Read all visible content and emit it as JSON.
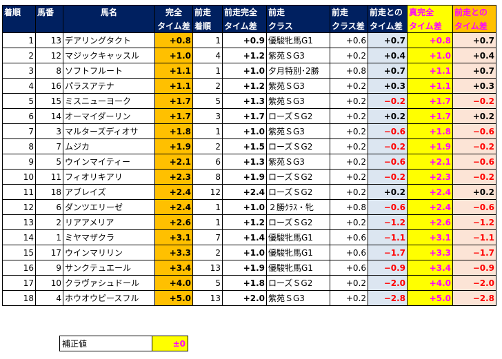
{
  "headers": {
    "rank": [
      "着順",
      ""
    ],
    "number": [
      "馬番",
      ""
    ],
    "name": [
      "馬名",
      ""
    ],
    "complete_time": [
      "完全",
      "タイム差"
    ],
    "prev_rank": [
      "前走",
      "着順"
    ],
    "prev_complete_time": [
      "前走完全",
      "タイム差"
    ],
    "prev_class": [
      "前走",
      "クラス"
    ],
    "prev_class_diff": [
      "前走",
      "クラス差"
    ],
    "prev_diff": [
      "前走との",
      "タイム差"
    ],
    "true_complete": [
      "真完全",
      "タイム差"
    ],
    "prev_time_diff": [
      "前走との",
      "タイム差"
    ]
  },
  "colors": {
    "header_bg": "#002060",
    "orange": "#ffc000",
    "yellow": "#ffff00",
    "lavender": "#dce6f1",
    "peach": "#fce4d6",
    "negative": "#ff0000",
    "magenta": "#ff00ff"
  },
  "rows": [
    {
      "rank": "1",
      "number": "13",
      "name": "デアリングタクト",
      "complete": "+0.8",
      "prev_rank": "1",
      "prev_complete": "+0.9",
      "prev_class": "優駿牝馬G1",
      "class_diff": "+0.6",
      "prev_diff": "+0.7",
      "true_complete": "+0.8",
      "prev_time_diff": "+0.7"
    },
    {
      "rank": "2",
      "number": "12",
      "name": "マジックキャッスル",
      "complete": "+1.0",
      "prev_rank": "4",
      "prev_complete": "+1.2",
      "prev_class": "紫苑ＳG3",
      "class_diff": "+0.2",
      "prev_diff": "+0.4",
      "true_complete": "+1.0",
      "prev_time_diff": "+0.4"
    },
    {
      "rank": "3",
      "number": "8",
      "name": "ソフトフルート",
      "complete": "+1.1",
      "prev_rank": "1",
      "prev_complete": "+1.0",
      "prev_class": "夕月特別･2勝",
      "class_diff": "+0.8",
      "prev_diff": "+0.7",
      "true_complete": "+1.1",
      "prev_time_diff": "+0.7"
    },
    {
      "rank": "4",
      "number": "16",
      "name": "パラスアテナ",
      "complete": "+1.1",
      "prev_rank": "2",
      "prev_complete": "+1.2",
      "prev_class": "紫苑ＳG3",
      "class_diff": "+0.2",
      "prev_diff": "+0.3",
      "true_complete": "+1.1",
      "prev_time_diff": "+0.3"
    },
    {
      "rank": "5",
      "number": "15",
      "name": "ミスニューヨーク",
      "complete": "+1.7",
      "prev_rank": "5",
      "prev_complete": "+1.3",
      "prev_class": "紫苑ＳG3",
      "class_diff": "+0.2",
      "prev_diff": "−0.2",
      "true_complete": "+1.7",
      "prev_time_diff": "−0.2"
    },
    {
      "rank": "6",
      "number": "14",
      "name": "オーマイダーリン",
      "complete": "+1.7",
      "prev_rank": "3",
      "prev_complete": "+1.7",
      "prev_class": "ローズＳG2",
      "class_diff": "+0.2",
      "prev_diff": "+0.2",
      "true_complete": "+1.7",
      "prev_time_diff": "+0.2"
    },
    {
      "rank": "7",
      "number": "3",
      "name": "マルターズディオサ",
      "complete": "+1.8",
      "prev_rank": "1",
      "prev_complete": "+1.0",
      "prev_class": "紫苑ＳG3",
      "class_diff": "+0.2",
      "prev_diff": "−0.6",
      "true_complete": "+1.8",
      "prev_time_diff": "−0.6"
    },
    {
      "rank": "8",
      "number": "7",
      "name": "ムジカ",
      "complete": "+1.9",
      "prev_rank": "2",
      "prev_complete": "+1.5",
      "prev_class": "ローズＳG2",
      "class_diff": "+0.2",
      "prev_diff": "−0.2",
      "true_complete": "+1.9",
      "prev_time_diff": "−0.2"
    },
    {
      "rank": "9",
      "number": "5",
      "name": "ウインマイティー",
      "complete": "+2.1",
      "prev_rank": "6",
      "prev_complete": "+1.3",
      "prev_class": "紫苑ＳG3",
      "class_diff": "+0.2",
      "prev_diff": "−0.6",
      "true_complete": "+2.1",
      "prev_time_diff": "−0.6"
    },
    {
      "rank": "10",
      "number": "11",
      "name": "フィオリキアリ",
      "complete": "+2.3",
      "prev_rank": "8",
      "prev_complete": "+1.9",
      "prev_class": "ローズＳG2",
      "class_diff": "+0.2",
      "prev_diff": "−0.2",
      "true_complete": "+2.3",
      "prev_time_diff": "−0.2"
    },
    {
      "rank": "11",
      "number": "18",
      "name": "アブレイズ",
      "complete": "+2.4",
      "prev_rank": "12",
      "prev_complete": "+2.4",
      "prev_class": "ローズＳG2",
      "class_diff": "+0.2",
      "prev_diff": "+0.2",
      "true_complete": "+2.4",
      "prev_time_diff": "+0.2"
    },
    {
      "rank": "12",
      "number": "6",
      "name": "ダンツエリーゼ",
      "complete": "+2.4",
      "prev_rank": "1",
      "prev_complete": "+1.0",
      "prev_class": "２勝ｸﾗｽ・牝",
      "class_diff": "+0.8",
      "prev_diff": "−0.6",
      "true_complete": "+2.4",
      "prev_time_diff": "−0.6"
    },
    {
      "rank": "13",
      "number": "2",
      "name": "リアアメリア",
      "complete": "+2.6",
      "prev_rank": "1",
      "prev_complete": "+1.2",
      "prev_class": "ローズＳG2",
      "class_diff": "+0.2",
      "prev_diff": "−1.2",
      "true_complete": "+2.6",
      "prev_time_diff": "−1.2"
    },
    {
      "rank": "14",
      "number": "1",
      "name": "ミヤマザクラ",
      "complete": "+3.1",
      "prev_rank": "7",
      "prev_complete": "+1.4",
      "prev_class": "優駿牝馬G1",
      "class_diff": "+0.6",
      "prev_diff": "−1.1",
      "true_complete": "+3.1",
      "prev_time_diff": "−1.1"
    },
    {
      "rank": "15",
      "number": "17",
      "name": "ウインマリリン",
      "complete": "+3.3",
      "prev_rank": "2",
      "prev_complete": "+1.0",
      "prev_class": "優駿牝馬G1",
      "class_diff": "+0.6",
      "prev_diff": "−1.7",
      "true_complete": "+3.3",
      "prev_time_diff": "−1.7"
    },
    {
      "rank": "16",
      "number": "9",
      "name": "サンクテュエール",
      "complete": "+3.4",
      "prev_rank": "13",
      "prev_complete": "+1.9",
      "prev_class": "優駿牝馬G1",
      "class_diff": "+0.6",
      "prev_diff": "−0.9",
      "true_complete": "+3.4",
      "prev_time_diff": "−0.9"
    },
    {
      "rank": "17",
      "number": "10",
      "name": "クラヴァシュドール",
      "complete": "+4.0",
      "prev_rank": "5",
      "prev_complete": "+1.8",
      "prev_class": "ローズＳG2",
      "class_diff": "+0.2",
      "prev_diff": "−2.0",
      "true_complete": "+4.0",
      "prev_time_diff": "−2.0"
    },
    {
      "rank": "18",
      "number": "4",
      "name": "ホウオウピースフル",
      "complete": "+5.0",
      "prev_rank": "13",
      "prev_complete": "+2.0",
      "prev_class": "紫苑ＳG3",
      "class_diff": "+0.2",
      "prev_diff": "−2.8",
      "true_complete": "+5.0",
      "prev_time_diff": "−2.8"
    }
  ],
  "correction": {
    "label": "補正値",
    "value": "±0"
  }
}
